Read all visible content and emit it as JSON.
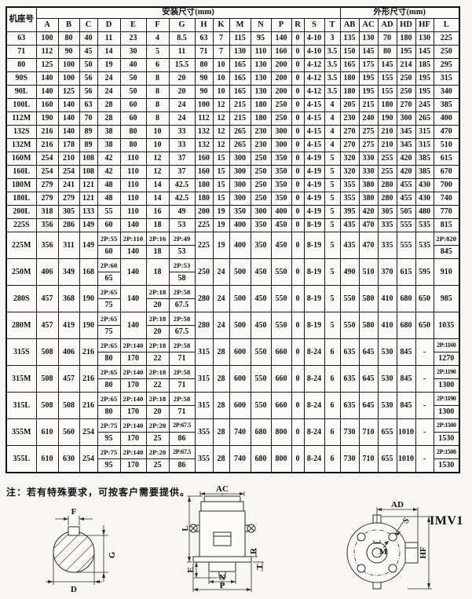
{
  "table": {
    "corner_header": "机座号",
    "group_headers": {
      "mounting": "安装尺寸(mm)",
      "outline": "外形尺寸(mm)"
    },
    "mounting_cols": [
      "A",
      "B",
      "C",
      "D",
      "E",
      "F",
      "G",
      "H",
      "K",
      "M",
      "N",
      "P",
      "R",
      "S",
      "T"
    ],
    "outline_cols": [
      "AB",
      "AC",
      "AD",
      "HD",
      "HF",
      "L"
    ],
    "rows": [
      {
        "frame": "63",
        "cells": [
          "100",
          "80",
          "40",
          "11",
          "23",
          "4",
          "8.5",
          "63",
          "7",
          "115",
          "95",
          "140",
          "0",
          "4-10",
          "3",
          "135",
          "130",
          "70",
          "180",
          "130",
          "225"
        ]
      },
      {
        "frame": "71",
        "cells": [
          "112",
          "90",
          "45",
          "14",
          "30",
          "5",
          "11",
          "71",
          "7",
          "130",
          "110",
          "160",
          "0",
          "4-10",
          "3.5",
          "150",
          "145",
          "80",
          "195",
          "145",
          "250"
        ]
      },
      {
        "frame": "80",
        "cells": [
          "125",
          "100",
          "50",
          "19",
          "40",
          "6",
          "15.5",
          "80",
          "10",
          "165",
          "130",
          "200",
          "0",
          "4-12",
          "3.5",
          "165",
          "175",
          "145",
          "214",
          "185",
          "295"
        ]
      },
      {
        "frame": "90S",
        "cells": [
          "140",
          "100",
          "56",
          "24",
          "50",
          "8",
          "20",
          "90",
          "10",
          "165",
          "130",
          "200",
          "0",
          "4-12",
          "3.5",
          "180",
          "195",
          "155",
          "250",
          "195",
          "315"
        ]
      },
      {
        "frame": "90L",
        "cells": [
          "140",
          "125",
          "56",
          "24",
          "50",
          "8",
          "20",
          "90",
          "10",
          "165",
          "130",
          "200",
          "0",
          "4-12",
          "3.5",
          "180",
          "195",
          "155",
          "250",
          "195",
          "340"
        ]
      },
      {
        "frame": "100L",
        "cells": [
          "160",
          "140",
          "63",
          "28",
          "60",
          "8",
          "24",
          "100",
          "12",
          "215",
          "180",
          "250",
          "0",
          "4-15",
          "4",
          "205",
          "215",
          "180",
          "270",
          "245",
          "385"
        ]
      },
      {
        "frame": "112M",
        "cells": [
          "190",
          "140",
          "70",
          "28",
          "60",
          "8",
          "24",
          "112",
          "12",
          "215",
          "180",
          "250",
          "0",
          "4-15",
          "4",
          "230",
          "240",
          "190",
          "300",
          "265",
          "400"
        ]
      },
      {
        "frame": "132S",
        "cells": [
          "216",
          "140",
          "89",
          "38",
          "80",
          "10",
          "33",
          "132",
          "12",
          "265",
          "230",
          "300",
          "0",
          "4-15",
          "4",
          "270",
          "275",
          "210",
          "345",
          "315",
          "470"
        ]
      },
      {
        "frame": "132M",
        "cells": [
          "216",
          "178",
          "89",
          "38",
          "80",
          "10",
          "33",
          "132",
          "12",
          "265",
          "230",
          "300",
          "0",
          "4-15",
          "4",
          "270",
          "275",
          "210",
          "345",
          "315",
          "510"
        ]
      },
      {
        "frame": "160M",
        "cells": [
          "254",
          "210",
          "108",
          "42",
          "110",
          "12",
          "37",
          "160",
          "15",
          "300",
          "250",
          "350",
          "0",
          "4-19",
          "5",
          "320",
          "330",
          "255",
          "420",
          "385",
          "615"
        ]
      },
      {
        "frame": "160L",
        "cells": [
          "254",
          "254",
          "108",
          "42",
          "110",
          "12",
          "37",
          "160",
          "15",
          "300",
          "250",
          "350",
          "0",
          "4-19",
          "5",
          "320",
          "330",
          "255",
          "420",
          "385",
          "670"
        ]
      },
      {
        "frame": "180M",
        "cells": [
          "279",
          "241",
          "121",
          "48",
          "110",
          "14",
          "42.5",
          "180",
          "15",
          "300",
          "250",
          "350",
          "0",
          "4-19",
          "5",
          "355",
          "380",
          "280",
          "455",
          "430",
          "700"
        ]
      },
      {
        "frame": "180L",
        "cells": [
          "279",
          "279",
          "121",
          "48",
          "110",
          "14",
          "42.5",
          "180",
          "15",
          "300",
          "250",
          "350",
          "0",
          "4-19",
          "5",
          "355",
          "380",
          "280",
          "455",
          "430",
          "740"
        ]
      },
      {
        "frame": "200L",
        "cells": [
          "318",
          "305",
          "133",
          "55",
          "110",
          "16",
          "49",
          "200",
          "19",
          "350",
          "300",
          "400",
          "0",
          "4-19",
          "5",
          "395",
          "420",
          "305",
          "505",
          "480",
          "770"
        ]
      },
      {
        "frame": "225S",
        "cells": [
          "356",
          "286",
          "149",
          "60",
          "140",
          "18",
          "53",
          "225",
          "19",
          "400",
          "350",
          "450",
          "0",
          "8-19",
          "5",
          "435",
          "470",
          "335",
          "555",
          "535",
          "815"
        ]
      },
      {
        "frame": "225M",
        "cells": [
          "356",
          "311",
          "149",
          [
            "2P:55",
            "60"
          ],
          [
            "2P:110",
            "140"
          ],
          [
            "2P:16",
            "18"
          ],
          [
            "2P:49",
            "53"
          ],
          "225",
          "19",
          "400",
          "350",
          "450",
          "0",
          "8-19",
          "5",
          "435",
          "470",
          "335",
          "555",
          "535",
          [
            "2P:820",
            "845"
          ]
        ]
      },
      {
        "frame": "250M",
        "cells": [
          "406",
          "349",
          "168",
          [
            "2P:60",
            "65"
          ],
          "140",
          "18",
          [
            "2P:53",
            "58"
          ],
          "250",
          "24",
          "500",
          "450",
          "550",
          "0",
          "8-19",
          "5",
          "490",
          "510",
          "370",
          "615",
          "595",
          "910"
        ]
      },
      {
        "frame": "280S",
        "cells": [
          "457",
          "368",
          "190",
          [
            "2P:65",
            "75"
          ],
          "140",
          [
            "2P:18",
            "20"
          ],
          [
            "2P:58",
            "67.5"
          ],
          "280",
          "24",
          "500",
          "450",
          "550",
          "0",
          "8-19",
          "5",
          "550",
          "580",
          "410",
          "680",
          "650",
          "985"
        ]
      },
      {
        "frame": "280M",
        "cells": [
          "457",
          "419",
          "190",
          [
            "2P:65",
            "75"
          ],
          "140",
          [
            "2P:18",
            "20"
          ],
          [
            "2P:58",
            "67.5"
          ],
          "280",
          "24",
          "500",
          "450",
          "550",
          "0",
          "8-19",
          "5",
          "550",
          "580",
          "410",
          "680",
          "650",
          "1035"
        ]
      },
      {
        "frame": "315S",
        "cells": [
          "508",
          "406",
          "216",
          [
            "2P:65",
            "80"
          ],
          [
            "2P:140",
            "170"
          ],
          [
            "2P:18",
            "22"
          ],
          [
            "2P:58",
            "71"
          ],
          "315",
          "28",
          "600",
          "550",
          "660",
          "0",
          "8-24",
          "6",
          "635",
          "645",
          "530",
          "845",
          "-",
          [
            "2P:1160",
            "1270"
          ]
        ]
      },
      {
        "frame": "315M",
        "cells": [
          "508",
          "457",
          "216",
          [
            "2P:65",
            "80"
          ],
          [
            "2P:140",
            "170"
          ],
          [
            "2P:18",
            "22"
          ],
          [
            "2P:58",
            "71"
          ],
          "315",
          "28",
          "600",
          "550",
          "660",
          "0",
          "8-24",
          "6",
          "635",
          "645",
          "530",
          "845",
          "-",
          [
            "2P:1190",
            "1300"
          ]
        ]
      },
      {
        "frame": "315L",
        "cells": [
          "508",
          "508",
          "216",
          [
            "2P:65",
            "80"
          ],
          [
            "2P:140",
            "170"
          ],
          [
            "2P:18",
            "20"
          ],
          [
            "2P:58",
            "71"
          ],
          "315",
          "28",
          "600",
          "550",
          "660",
          "0",
          "8-24",
          "6",
          "635",
          "645",
          "530",
          "845",
          "-",
          [
            "2P:1190",
            "1300"
          ]
        ]
      },
      {
        "frame": "355M",
        "cells": [
          "610",
          "560",
          "254",
          [
            "2P:75",
            "95"
          ],
          [
            "2P:140",
            "170"
          ],
          [
            "2P:20",
            "25"
          ],
          [
            "2P:67.5",
            "86"
          ],
          "355",
          "28",
          "740",
          "680",
          "800",
          "0",
          "8-24",
          "6",
          "730",
          "710",
          "655",
          "1010",
          "-",
          [
            "2P:1500",
            "1530"
          ]
        ]
      },
      {
        "frame": "355L",
        "cells": [
          "610",
          "630",
          "254",
          [
            "2P:75",
            "95"
          ],
          [
            "2P:140",
            "170"
          ],
          [
            "2P:20",
            "25"
          ],
          [
            "2P:67.5",
            "86"
          ],
          "355",
          "28",
          "740",
          "680",
          "800",
          "0",
          "8-24",
          "6",
          "730",
          "710",
          "655",
          "1010",
          "-",
          [
            "2P:1500",
            "1530"
          ]
        ]
      }
    ]
  },
  "note": "注：若有特殊要求，可按客户需要提供。",
  "diagrams": {
    "shaft": {
      "top": "F",
      "side": "G",
      "bottom": "D"
    },
    "motor": {
      "top": "AC",
      "left": "L",
      "left_lower": "E",
      "bottom_inner": "N",
      "bottom_outer": "P",
      "right_upper": "R",
      "right_lower": "T"
    },
    "flange": {
      "top": "AD",
      "diagonal": "S",
      "center": "M",
      "right": "HF"
    },
    "mount_code": "IMV1"
  }
}
